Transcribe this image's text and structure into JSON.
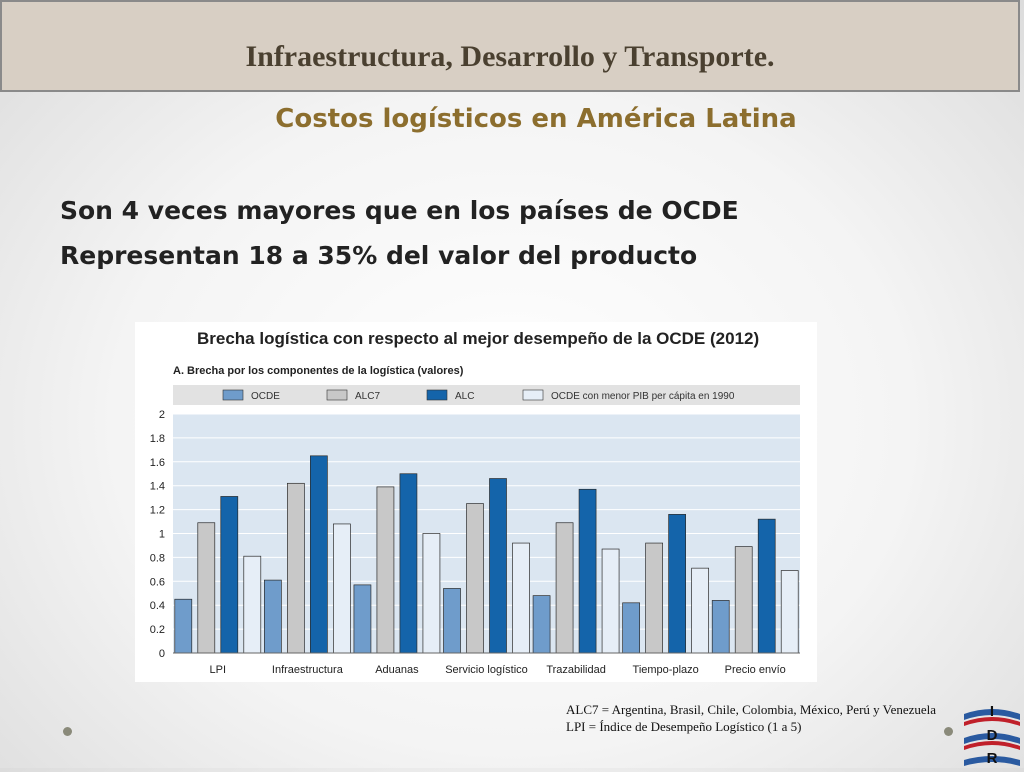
{
  "slide": {
    "title": "Infraestructura, Desarrollo y Transporte.",
    "subtitle": "Costos logísticos en América Latina",
    "bullets": [
      "Son 4 veces mayores que en los países de OCDE",
      "Representan 18 a 35% del valor del producto"
    ],
    "footnotes": [
      "ALC7 = Argentina, Brasil, Chile, Colombia,  México, Perú y Venezuela",
      "LPI = Índice de Desempeño Logístico (1 a 5)"
    ],
    "logo_letters": [
      "I",
      "D",
      "R"
    ]
  },
  "chart_data": {
    "type": "bar",
    "title": "Brecha logística con respecto al mejor desempeño de la OCDE (2012)",
    "subtitle": "A. Brecha por los componentes de la logística (valores)",
    "categories": [
      "LPI",
      "Infraestructura",
      "Aduanas",
      "Servicio logístico",
      "Trazabilidad",
      "Tiempo-plazo",
      "Precio envío"
    ],
    "ylim": [
      0,
      2
    ],
    "yticks": [
      "0",
      "0.2",
      "0.4",
      "0.6",
      "0.8",
      "1",
      "1.2",
      "1.4",
      "1.6",
      "1.8",
      "2"
    ],
    "legend_position": "top",
    "series": [
      {
        "name": "OCDE",
        "color": "#6f9ccb",
        "values": [
          0.45,
          0.61,
          0.57,
          0.54,
          0.48,
          0.42,
          0.44
        ]
      },
      {
        "name": "ALC7",
        "color": "#c8c8c8",
        "values": [
          1.09,
          1.42,
          1.39,
          1.25,
          1.09,
          0.92,
          0.89
        ]
      },
      {
        "name": "ALC",
        "color": "#1464aa",
        "values": [
          1.31,
          1.65,
          1.5,
          1.46,
          1.37,
          1.16,
          1.12
        ]
      },
      {
        "name": "OCDE con menor PIB per cápita en 1990",
        "color": "#e6eef7",
        "values": [
          0.81,
          1.08,
          1.0,
          0.92,
          0.87,
          0.71,
          0.69
        ]
      }
    ]
  }
}
